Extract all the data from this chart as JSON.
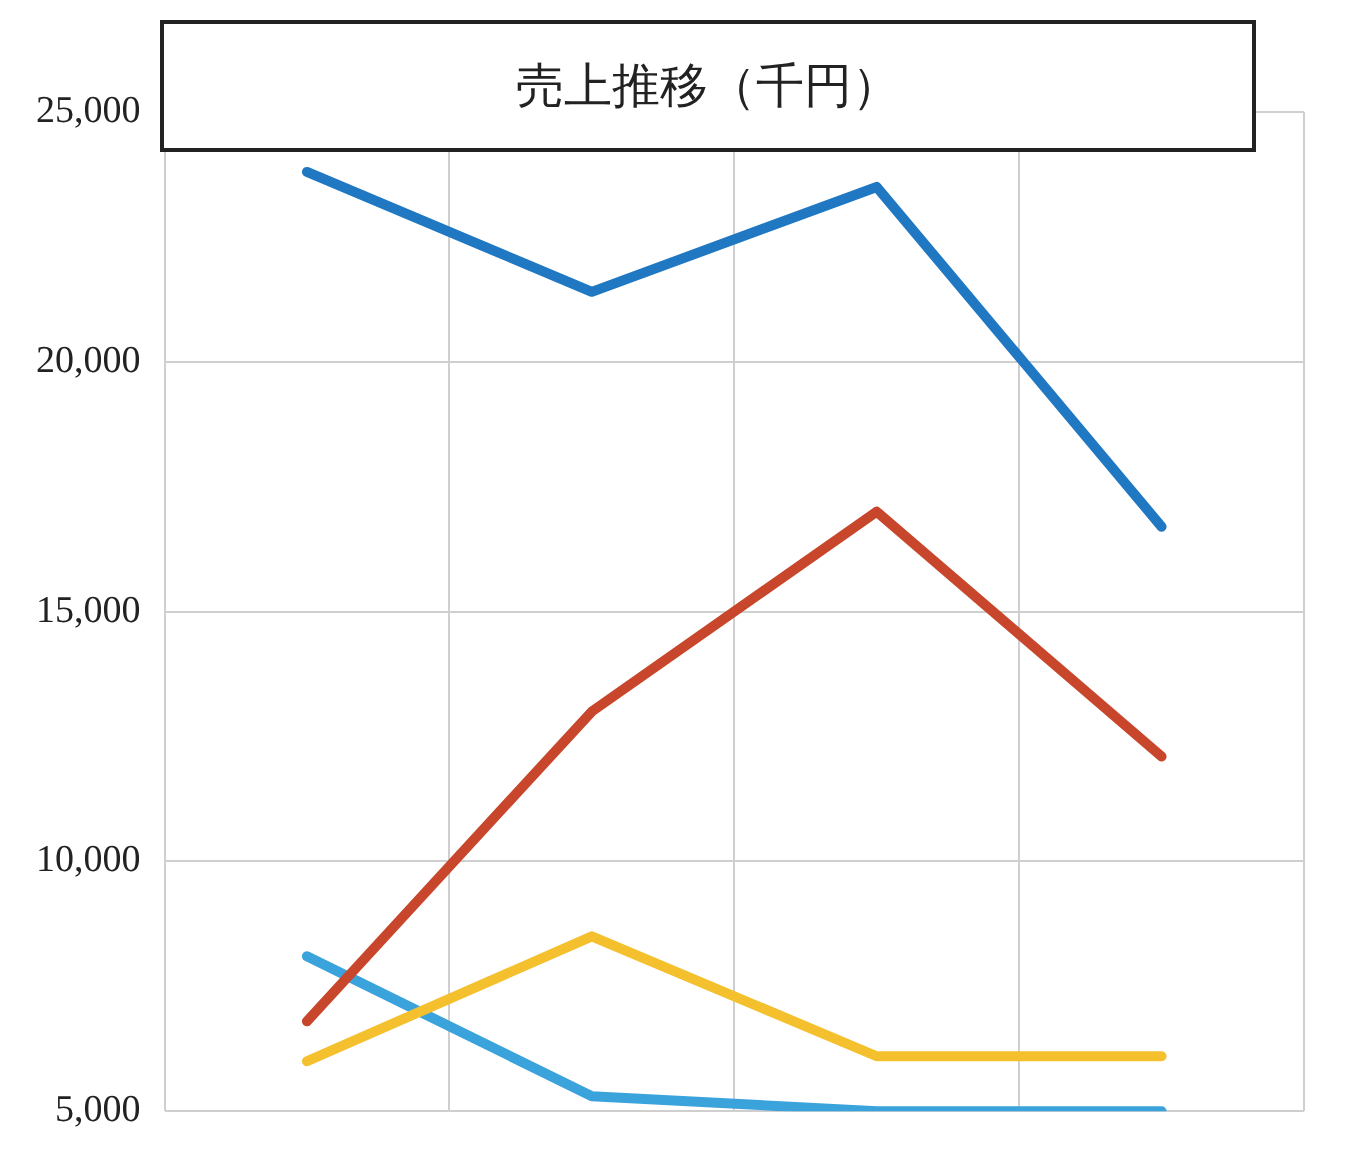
{
  "chart_data": {
    "type": "line",
    "title": "売上推移（千円）",
    "categories": [
      null,
      null,
      null,
      null
    ],
    "series": [
      {
        "color": "#1f78c1",
        "values": [
          23800,
          21400,
          23500,
          16700
        ]
      },
      {
        "color": "#c8462b",
        "values": [
          6800,
          13000,
          17000,
          12100
        ]
      },
      {
        "color": "#f4c02e",
        "values": [
          6000,
          8500,
          6100,
          6100
        ]
      },
      {
        "color": "#3ba3dc",
        "values": [
          8100,
          5300,
          5000,
          5000
        ]
      }
    ],
    "ylim": [
      5000,
      25000
    ],
    "yticks": [
      {
        "value": 5000,
        "label": "5,000"
      },
      {
        "value": 10000,
        "label": "10,000"
      },
      {
        "value": 15000,
        "label": "15,000"
      },
      {
        "value": 20000,
        "label": "20,000"
      },
      {
        "value": 25000,
        "label": "25,000"
      }
    ],
    "grid": true,
    "tick_labels": "y",
    "legend": false,
    "marker": "none",
    "line_style": "solid"
  }
}
